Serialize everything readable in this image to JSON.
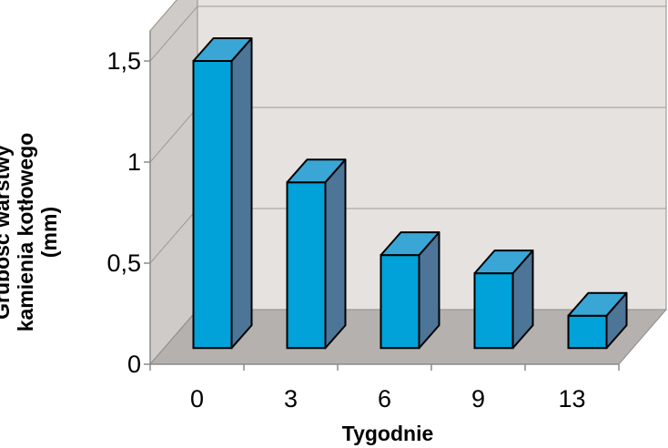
{
  "chart_data": {
    "type": "bar",
    "categories": [
      "0",
      "3",
      "6",
      "9",
      "13"
    ],
    "values": [
      1.5,
      0.9,
      0.54,
      0.45,
      0.24
    ],
    "xlabel": "Tygodnie",
    "ylabel_lines": [
      "Grubość warstwy",
      "kamienia kotłowego",
      "(mm)"
    ],
    "ylim": [
      0,
      1.5
    ],
    "yticks": [
      "0",
      "0,5",
      "1",
      "1,5"
    ],
    "ytick_values": [
      0,
      0.5,
      1,
      1.5
    ],
    "grid": true,
    "style": "3d",
    "colors": {
      "bar_front": "#00a2d9",
      "bar_top": "#3aa6d6",
      "bar_side": "#4d7597",
      "back_wall": "#e5e2df",
      "side_wall": "#cfcbc8",
      "floor": "#b5b1ae",
      "gridline": "#9d9a98"
    }
  }
}
